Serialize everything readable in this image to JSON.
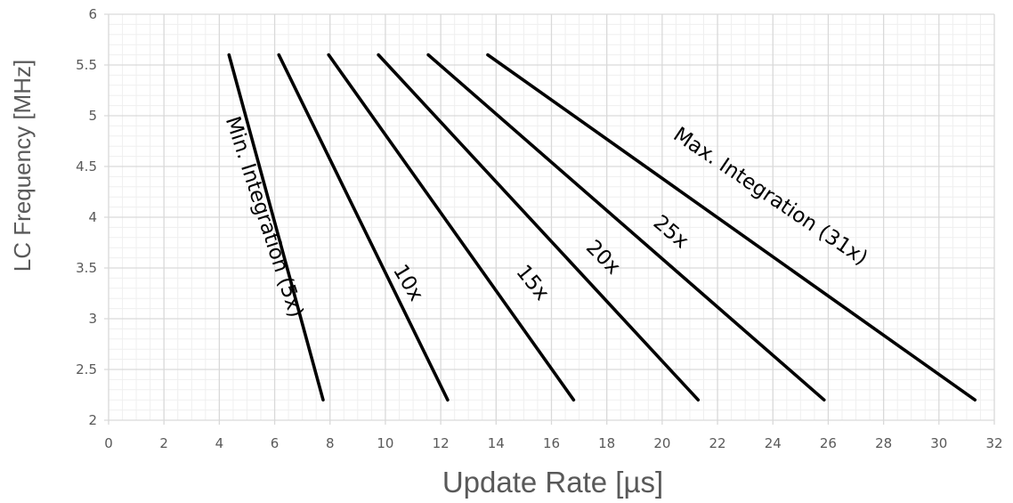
{
  "chart_data": {
    "type": "line",
    "title": "",
    "xlabel": "Update Rate [µs]",
    "ylabel": "LC Frequency [MHz]",
    "xlim": [
      0,
      32
    ],
    "ylim": [
      2,
      6
    ],
    "x_ticks": [
      0,
      2,
      4,
      6,
      8,
      10,
      12,
      14,
      16,
      18,
      20,
      22,
      24,
      26,
      28,
      30,
      32
    ],
    "x_tick_labels": [
      "0",
      "2",
      "4",
      "6",
      "8",
      "10",
      "12",
      "14",
      "16",
      "18",
      "20",
      "22",
      "24",
      "26",
      "28",
      "30",
      "32"
    ],
    "y_ticks": [
      2,
      2.5,
      3,
      3.5,
      4,
      4.5,
      5,
      5.5,
      6
    ],
    "y_tick_labels": [
      "2",
      "2.5",
      "3",
      "3.5",
      "4",
      "4.5",
      "5",
      "5.5",
      "6"
    ],
    "x_minor_step": 0.5,
    "y_minor_step": 0.1,
    "grid": true,
    "legend": "none",
    "line_color": "#000000",
    "grid_major_color": "#d9d9d9",
    "grid_minor_color": "#efefef",
    "series": [
      {
        "name": "Min. Integration (5x)",
        "points": [
          [
            4.35,
            5.6
          ],
          [
            7.75,
            2.2
          ]
        ],
        "label_at": [
          5.6,
          4.0
        ],
        "label_angle": 72
      },
      {
        "name": "10x",
        "points": [
          [
            6.15,
            5.6
          ],
          [
            12.25,
            2.2
          ]
        ],
        "label_at": [
          10.8,
          3.35
        ],
        "label_angle": 59
      },
      {
        "name": "15x",
        "points": [
          [
            7.95,
            5.6
          ],
          [
            16.8,
            2.2
          ]
        ],
        "label_at": [
          15.3,
          3.35
        ],
        "label_angle": 51
      },
      {
        "name": "20x",
        "points": [
          [
            9.75,
            5.6
          ],
          [
            21.3,
            2.2
          ]
        ],
        "label_at": [
          17.85,
          3.6
        ],
        "label_angle": 45
      },
      {
        "name": "25x",
        "points": [
          [
            11.55,
            5.6
          ],
          [
            25.85,
            2.2
          ]
        ],
        "label_at": [
          20.3,
          3.85
        ],
        "label_angle": 40
      },
      {
        "name": "Max. Integration (31x)",
        "points": [
          [
            13.7,
            5.6
          ],
          [
            31.3,
            2.2
          ]
        ],
        "label_at": [
          23.9,
          4.2
        ],
        "label_angle": 34
      }
    ]
  }
}
